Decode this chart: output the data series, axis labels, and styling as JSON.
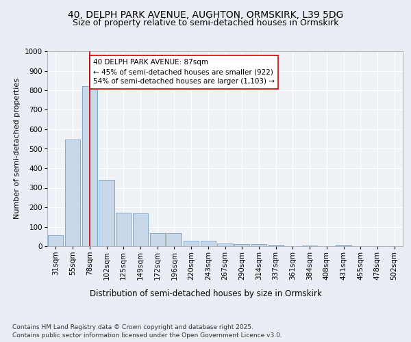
{
  "title1": "40, DELPH PARK AVENUE, AUGHTON, ORMSKIRK, L39 5DG",
  "title2": "Size of property relative to semi-detached houses in Ormskirk",
  "xlabel": "Distribution of semi-detached houses by size in Ormskirk",
  "ylabel": "Number of semi-detached properties",
  "bins": [
    "31sqm",
    "55sqm",
    "78sqm",
    "102sqm",
    "125sqm",
    "149sqm",
    "172sqm",
    "196sqm",
    "220sqm",
    "243sqm",
    "267sqm",
    "290sqm",
    "314sqm",
    "337sqm",
    "361sqm",
    "384sqm",
    "408sqm",
    "431sqm",
    "455sqm",
    "478sqm",
    "502sqm"
  ],
  "values": [
    55,
    548,
    820,
    340,
    173,
    170,
    68,
    68,
    28,
    28,
    14,
    11,
    10,
    7,
    0,
    5,
    0,
    8,
    0,
    0,
    0
  ],
  "bar_color": "#c8d8e8",
  "bar_edge_color": "#6090b8",
  "vline_x_index": 2,
  "vline_color": "#cc0000",
  "annotation_text": "40 DELPH PARK AVENUE: 87sqm\n← 45% of semi-detached houses are smaller (922)\n54% of semi-detached houses are larger (1,103) →",
  "annotation_box_color": "#ffffff",
  "annotation_box_edge": "#cc0000",
  "ylim": [
    0,
    1000
  ],
  "yticks": [
    0,
    100,
    200,
    300,
    400,
    500,
    600,
    700,
    800,
    900,
    1000
  ],
  "bg_color": "#e8eef4",
  "plot_bg_color": "#eef2f7",
  "footer": "Contains HM Land Registry data © Crown copyright and database right 2025.\nContains public sector information licensed under the Open Government Licence v3.0.",
  "title1_fontsize": 10,
  "title2_fontsize": 9,
  "xlabel_fontsize": 8.5,
  "ylabel_fontsize": 8,
  "tick_fontsize": 7.5,
  "annotation_fontsize": 7.5,
  "footer_fontsize": 6.5
}
